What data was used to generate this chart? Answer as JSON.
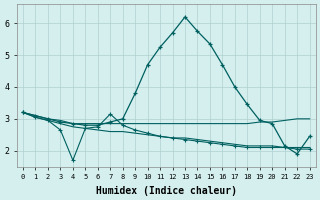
{
  "xlabel": "Humidex (Indice chaleur)",
  "background_color": "#d5efef",
  "grid_color": "#b0d0d0",
  "line_color": "#006060",
  "xlim": [
    -0.5,
    23.5
  ],
  "ylim": [
    1.5,
    6.6
  ],
  "yticks": [
    2,
    3,
    4,
    5,
    6
  ],
  "xticks": [
    0,
    1,
    2,
    3,
    4,
    5,
    6,
    7,
    8,
    9,
    10,
    11,
    12,
    13,
    14,
    15,
    16,
    17,
    18,
    19,
    20,
    21,
    22,
    23
  ],
  "line1_x": [
    0,
    1,
    2,
    3,
    4,
    5,
    6,
    7,
    8,
    9,
    10,
    11,
    12,
    13,
    14,
    15,
    16,
    17,
    18,
    19,
    20,
    21,
    22,
    23
  ],
  "line1_y": [
    3.2,
    3.1,
    3.0,
    2.9,
    2.85,
    2.8,
    2.8,
    2.9,
    3.0,
    3.8,
    4.7,
    5.25,
    5.7,
    6.2,
    5.75,
    5.35,
    4.7,
    4.0,
    3.45,
    2.95,
    2.85,
    2.15,
    1.9,
    2.45
  ],
  "line2_x": [
    0,
    1,
    2,
    3,
    4,
    5,
    6,
    7,
    8,
    9,
    10,
    11,
    12,
    13,
    14,
    15,
    16,
    17,
    18,
    19,
    20,
    21,
    22,
    23
  ],
  "line2_y": [
    3.2,
    3.1,
    3.0,
    2.95,
    2.85,
    2.85,
    2.85,
    2.85,
    2.85,
    2.85,
    2.85,
    2.85,
    2.85,
    2.85,
    2.85,
    2.85,
    2.85,
    2.85,
    2.85,
    2.9,
    2.9,
    2.95,
    3.0,
    3.0
  ],
  "line3_x": [
    0,
    1,
    2,
    3,
    4,
    5,
    6,
    7,
    8,
    9,
    10,
    11,
    12,
    13,
    14,
    15,
    16,
    17,
    18,
    19,
    20,
    21,
    22,
    23
  ],
  "line3_y": [
    3.2,
    3.05,
    2.95,
    2.85,
    2.75,
    2.7,
    2.65,
    2.6,
    2.6,
    2.55,
    2.5,
    2.45,
    2.4,
    2.4,
    2.35,
    2.3,
    2.25,
    2.2,
    2.15,
    2.15,
    2.15,
    2.1,
    2.1,
    2.1
  ],
  "line4_x": [
    0,
    1,
    2,
    3,
    4,
    5,
    6,
    7,
    8,
    9,
    10,
    11,
    12,
    13,
    14,
    15,
    16,
    17,
    18,
    19,
    20,
    21,
    22,
    23
  ],
  "line4_y": [
    3.2,
    3.05,
    2.95,
    2.65,
    1.7,
    2.7,
    2.75,
    3.15,
    2.8,
    2.65,
    2.55,
    2.45,
    2.4,
    2.35,
    2.3,
    2.25,
    2.2,
    2.15,
    2.1,
    2.1,
    2.1,
    2.1,
    2.05,
    2.05
  ]
}
